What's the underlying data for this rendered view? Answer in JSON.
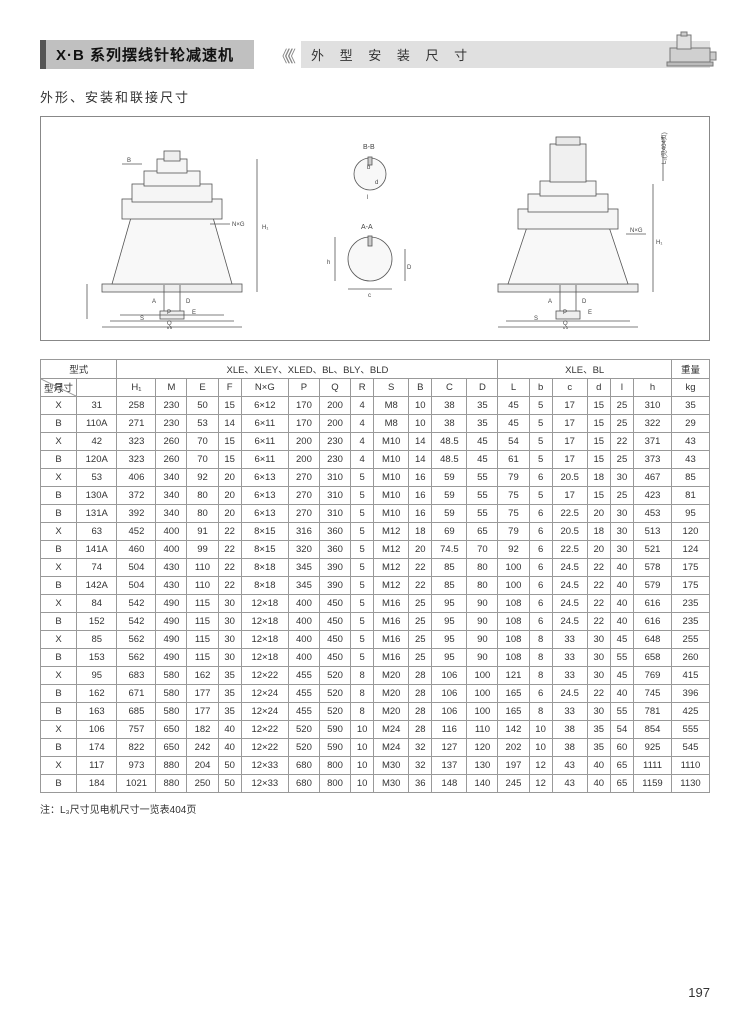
{
  "header": {
    "title": "X·B 系列摆线针轮减速机",
    "subtitle": "外 型 安 装 尺 寸"
  },
  "section_label": "外形、安装和联接尺寸",
  "footnote": "注：L₃尺寸见电机尺寸一览表404页",
  "page_number": "197",
  "diagram": {
    "left_labels": [
      "B",
      "B↑",
      "A↓",
      "D",
      "E",
      "N×G",
      "H₁",
      "P",
      "S",
      "Q",
      "M"
    ],
    "mid_labels": [
      "B-B",
      "A-A",
      "b",
      "d",
      "l",
      "D",
      "h",
      "c"
    ],
    "right_labels": [
      "L₃(见404页)",
      "H₁",
      "N×G",
      "A",
      "D",
      "E",
      "P",
      "S",
      "Q",
      "M"
    ]
  },
  "table": {
    "type_label": "型式",
    "size_label": "尺寸",
    "model_label": "型号",
    "header_group1": "XLE、XLEY、XLED、BL、BLY、BLD",
    "header_group2": "XLE、BL",
    "weight_label": "重量",
    "weight_unit": "kg",
    "columns": [
      "H₁",
      "M",
      "E",
      "F",
      "N×G",
      "P",
      "Q",
      "R",
      "S",
      "B",
      "C",
      "D",
      "L",
      "b",
      "c",
      "d",
      "l",
      "h"
    ],
    "rows": [
      [
        "X",
        "31",
        "258",
        "230",
        "50",
        "15",
        "6×12",
        "170",
        "200",
        "4",
        "M8",
        "10",
        "38",
        "35",
        "45",
        "5",
        "17",
        "15",
        "25",
        "310",
        "35"
      ],
      [
        "B",
        "110A",
        "271",
        "230",
        "53",
        "14",
        "6×11",
        "170",
        "200",
        "4",
        "M8",
        "10",
        "38",
        "35",
        "45",
        "5",
        "17",
        "15",
        "25",
        "322",
        "29"
      ],
      [
        "X",
        "42",
        "323",
        "260",
        "70",
        "15",
        "6×11",
        "200",
        "230",
        "4",
        "M10",
        "14",
        "48.5",
        "45",
        "54",
        "5",
        "17",
        "15",
        "22",
        "371",
        "43"
      ],
      [
        "B",
        "120A",
        "323",
        "260",
        "70",
        "15",
        "6×11",
        "200",
        "230",
        "4",
        "M10",
        "14",
        "48.5",
        "45",
        "61",
        "5",
        "17",
        "15",
        "25",
        "373",
        "43"
      ],
      [
        "X",
        "53",
        "406",
        "340",
        "92",
        "20",
        "6×13",
        "270",
        "310",
        "5",
        "M10",
        "16",
        "59",
        "55",
        "79",
        "6",
        "20.5",
        "18",
        "30",
        "467",
        "85"
      ],
      [
        "B",
        "130A",
        "372",
        "340",
        "80",
        "20",
        "6×13",
        "270",
        "310",
        "5",
        "M10",
        "16",
        "59",
        "55",
        "75",
        "5",
        "17",
        "15",
        "25",
        "423",
        "81"
      ],
      [
        "B",
        "131A",
        "392",
        "340",
        "80",
        "20",
        "6×13",
        "270",
        "310",
        "5",
        "M10",
        "16",
        "59",
        "55",
        "75",
        "6",
        "22.5",
        "20",
        "30",
        "453",
        "95"
      ],
      [
        "X",
        "63",
        "452",
        "400",
        "91",
        "22",
        "8×15",
        "316",
        "360",
        "5",
        "M12",
        "18",
        "69",
        "65",
        "79",
        "6",
        "20.5",
        "18",
        "30",
        "513",
        "120"
      ],
      [
        "B",
        "141A",
        "460",
        "400",
        "99",
        "22",
        "8×15",
        "320",
        "360",
        "5",
        "M12",
        "20",
        "74.5",
        "70",
        "92",
        "6",
        "22.5",
        "20",
        "30",
        "521",
        "124"
      ],
      [
        "X",
        "74",
        "504",
        "430",
        "110",
        "22",
        "8×18",
        "345",
        "390",
        "5",
        "M12",
        "22",
        "85",
        "80",
        "100",
        "6",
        "24.5",
        "22",
        "40",
        "578",
        "175"
      ],
      [
        "B",
        "142A",
        "504",
        "430",
        "110",
        "22",
        "8×18",
        "345",
        "390",
        "5",
        "M12",
        "22",
        "85",
        "80",
        "100",
        "6",
        "24.5",
        "22",
        "40",
        "579",
        "175"
      ],
      [
        "X",
        "84",
        "542",
        "490",
        "115",
        "30",
        "12×18",
        "400",
        "450",
        "5",
        "M16",
        "25",
        "95",
        "90",
        "108",
        "6",
        "24.5",
        "22",
        "40",
        "616",
        "235"
      ],
      [
        "B",
        "152",
        "542",
        "490",
        "115",
        "30",
        "12×18",
        "400",
        "450",
        "5",
        "M16",
        "25",
        "95",
        "90",
        "108",
        "6",
        "24.5",
        "22",
        "40",
        "616",
        "235"
      ],
      [
        "X",
        "85",
        "562",
        "490",
        "115",
        "30",
        "12×18",
        "400",
        "450",
        "5",
        "M16",
        "25",
        "95",
        "90",
        "108",
        "8",
        "33",
        "30",
        "45",
        "648",
        "255"
      ],
      [
        "B",
        "153",
        "562",
        "490",
        "115",
        "30",
        "12×18",
        "400",
        "450",
        "5",
        "M16",
        "25",
        "95",
        "90",
        "108",
        "8",
        "33",
        "30",
        "55",
        "658",
        "260"
      ],
      [
        "X",
        "95",
        "683",
        "580",
        "162",
        "35",
        "12×22",
        "455",
        "520",
        "8",
        "M20",
        "28",
        "106",
        "100",
        "121",
        "8",
        "33",
        "30",
        "45",
        "769",
        "415"
      ],
      [
        "B",
        "162",
        "671",
        "580",
        "177",
        "35",
        "12×24",
        "455",
        "520",
        "8",
        "M20",
        "28",
        "106",
        "100",
        "165",
        "6",
        "24.5",
        "22",
        "40",
        "745",
        "396"
      ],
      [
        "B",
        "163",
        "685",
        "580",
        "177",
        "35",
        "12×24",
        "455",
        "520",
        "8",
        "M20",
        "28",
        "106",
        "100",
        "165",
        "8",
        "33",
        "30",
        "55",
        "781",
        "425"
      ],
      [
        "X",
        "106",
        "757",
        "650",
        "182",
        "40",
        "12×22",
        "520",
        "590",
        "10",
        "M24",
        "28",
        "116",
        "110",
        "142",
        "10",
        "38",
        "35",
        "54",
        "854",
        "555"
      ],
      [
        "B",
        "174",
        "822",
        "650",
        "242",
        "40",
        "12×22",
        "520",
        "590",
        "10",
        "M24",
        "32",
        "127",
        "120",
        "202",
        "10",
        "38",
        "35",
        "60",
        "925",
        "545"
      ],
      [
        "X",
        "117",
        "973",
        "880",
        "204",
        "50",
        "12×33",
        "680",
        "800",
        "10",
        "M30",
        "32",
        "137",
        "130",
        "197",
        "12",
        "43",
        "40",
        "65",
        "1111",
        "1110"
      ],
      [
        "B",
        "184",
        "1021",
        "880",
        "250",
        "50",
        "12×33",
        "680",
        "800",
        "10",
        "M30",
        "36",
        "148",
        "140",
        "245",
        "12",
        "43",
        "40",
        "65",
        "1159",
        "1130"
      ]
    ]
  },
  "colors": {
    "page_bg": "#ffffff",
    "outer_bg": "#e8e8e8",
    "title_bg": "#c0c0c0",
    "title_border": "#555555",
    "subtitle_bg": "#e0e0e0",
    "border": "#999999",
    "line": "#555555",
    "fill_light": "#f5f5f5"
  }
}
